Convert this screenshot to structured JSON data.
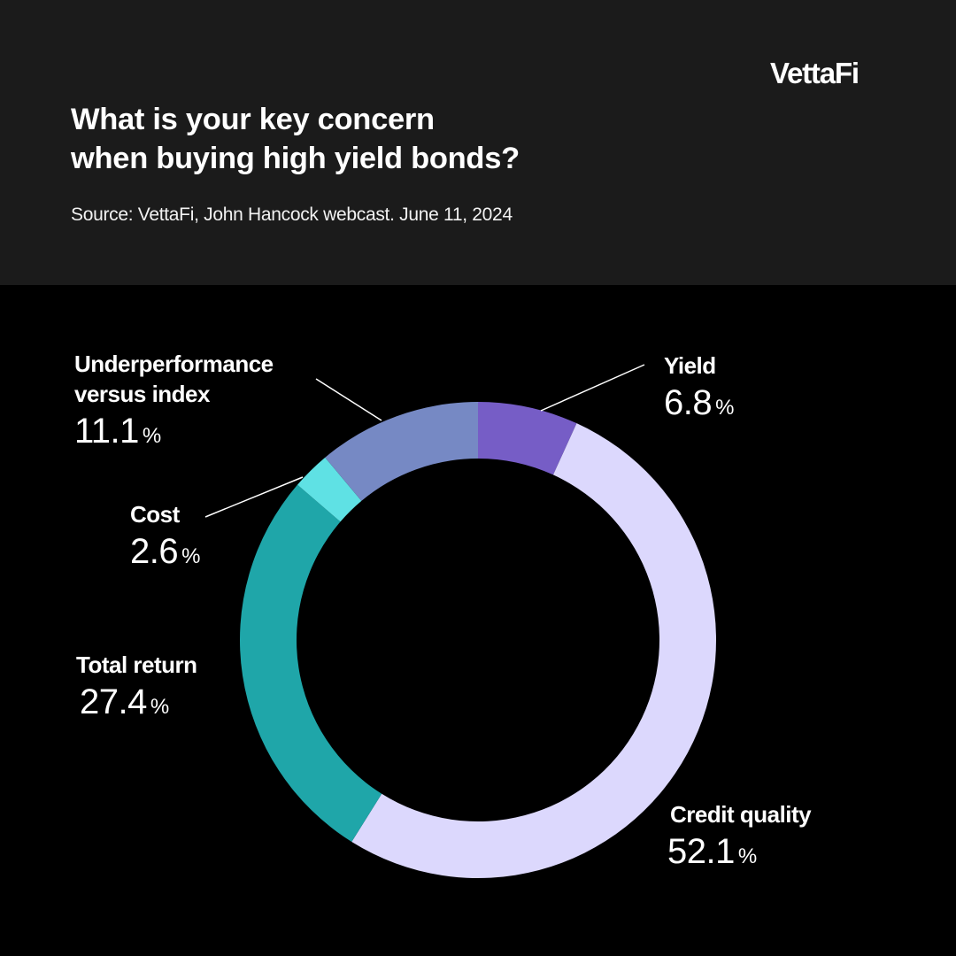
{
  "brand": {
    "logo_text": "VettaFi"
  },
  "header": {
    "title_lines": [
      "What is your key concern",
      "when buying high yield bonds?"
    ],
    "source": "Source: VettaFi, John Hancock webcast. June 11, 2024"
  },
  "colors": {
    "header_bg": "#1b1b1b",
    "chart_bg": "#000000",
    "yield": "#765dc6",
    "credit_quality": "#dcd8fd",
    "total_return": "#1fa6a9",
    "cost": "#5fe1e4",
    "underperformance": "#7689c4"
  },
  "chart_data": {
    "type": "pie",
    "donut": true,
    "unit": "%",
    "slices": [
      {
        "key": "yield",
        "label": "Yield",
        "display": "6.8",
        "value": 6.8,
        "color": "#765dc6"
      },
      {
        "key": "credit_quality",
        "label": "Credit quality",
        "display": "52.1",
        "value": 52.1,
        "color": "#dcd8fd"
      },
      {
        "key": "total_return",
        "label": "Total return",
        "display": "27.4",
        "value": 27.4,
        "color": "#1fa6a9"
      },
      {
        "key": "cost",
        "label": "Cost",
        "display": "2.6",
        "value": 2.6,
        "color": "#5fe1e4"
      },
      {
        "key": "underperformance",
        "label": "Underperformance versus index",
        "label_lines": [
          "Underperformance",
          "versus index"
        ],
        "display": "11.1",
        "value": 11.1,
        "color": "#7689c4"
      }
    ]
  }
}
